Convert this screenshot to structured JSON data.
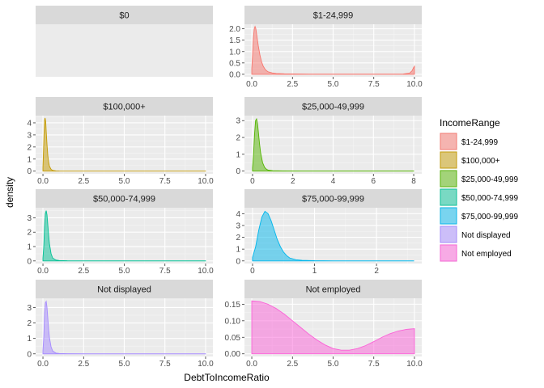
{
  "chart_data": {
    "type": "area",
    "subtype": "faceted-density",
    "xlabel": "DebtToIncomeRatio",
    "ylabel": "density",
    "legend": {
      "title": "IncomeRange",
      "position": "right",
      "entries": [
        {
          "label": "$1-24,999",
          "color": "#F8766D"
        },
        {
          "label": "$100,000+",
          "color": "#C49A00"
        },
        {
          "label": "$25,000-49,999",
          "color": "#53B400"
        },
        {
          "label": "$50,000-74,999",
          "color": "#00C094"
        },
        {
          "label": "$75,000-99,999",
          "color": "#00B6EB"
        },
        {
          "label": "Not displayed",
          "color": "#A58AFF"
        },
        {
          "label": "Not employed",
          "color": "#FB61D7"
        }
      ]
    },
    "grid": true,
    "panels": [
      {
        "title": "$0",
        "empty": true
      },
      {
        "title": "$1-24,999",
        "color": "#F8766D",
        "xlim": [
          -0.45,
          10.45
        ],
        "ylim": [
          -0.11,
          2.2
        ],
        "xticks": [
          0,
          2.5,
          5,
          7.5,
          10
        ],
        "xtick_labels": [
          "0.0",
          "2.5",
          "5.0",
          "7.5",
          "10.0"
        ],
        "yticks": [
          0,
          0.5,
          1,
          1.5,
          2
        ],
        "ytick_labels": [
          "0.0",
          "0.5",
          "1.0",
          "1.5",
          "2.0"
        ],
        "x": [
          0,
          0.05,
          0.1,
          0.15,
          0.2,
          0.25,
          0.3,
          0.4,
          0.5,
          0.6,
          0.7,
          0.8,
          0.9,
          1.0,
          1.25,
          1.5,
          2.0,
          3.0,
          5.0,
          7.0,
          8.5,
          9.3,
          9.7,
          9.85,
          9.95,
          10.0
        ],
        "y": [
          0.25,
          0.9,
          1.6,
          2.0,
          2.1,
          2.0,
          1.75,
          1.25,
          0.85,
          0.55,
          0.36,
          0.24,
          0.16,
          0.11,
          0.06,
          0.035,
          0.02,
          0.01,
          0.005,
          0.005,
          0.005,
          0.01,
          0.05,
          0.15,
          0.3,
          0.35
        ]
      },
      {
        "title": "$100,000+",
        "color": "#C49A00",
        "xlim": [
          -0.45,
          10.45
        ],
        "ylim": [
          -0.22,
          4.6
        ],
        "xticks": [
          0,
          2.5,
          5,
          7.5,
          10
        ],
        "xtick_labels": [
          "0.0",
          "2.5",
          "5.0",
          "7.5",
          "10.0"
        ],
        "yticks": [
          0,
          1,
          2,
          3,
          4
        ],
        "ytick_labels": [
          "0",
          "1",
          "2",
          "3",
          "4"
        ],
        "x": [
          0,
          0.03,
          0.07,
          0.1,
          0.13,
          0.17,
          0.2,
          0.25,
          0.3,
          0.35,
          0.4,
          0.5,
          0.6,
          0.8,
          1.0,
          1.5,
          3.0,
          6.0,
          10.0
        ],
        "y": [
          0.3,
          1.5,
          3.2,
          4.2,
          4.4,
          4.1,
          3.3,
          2.2,
          1.3,
          0.75,
          0.4,
          0.15,
          0.06,
          0.02,
          0.01,
          0.005,
          0.003,
          0.002,
          0.002
        ]
      },
      {
        "title": "$25,000-49,999",
        "color": "#53B400",
        "xlim": [
          -0.4,
          8.4
        ],
        "ylim": [
          -0.16,
          3.3
        ],
        "xticks": [
          0,
          2,
          4,
          6,
          8
        ],
        "xtick_labels": [
          "0",
          "2",
          "4",
          "6",
          "8"
        ],
        "yticks": [
          0,
          1,
          2,
          3
        ],
        "ytick_labels": [
          "0",
          "1",
          "2",
          "3"
        ],
        "x": [
          0,
          0.05,
          0.1,
          0.15,
          0.2,
          0.25,
          0.3,
          0.35,
          0.4,
          0.5,
          0.6,
          0.7,
          0.8,
          1.0,
          1.5,
          2.5,
          4.0,
          6.0,
          8.0
        ],
        "y": [
          0.2,
          1.0,
          2.2,
          3.0,
          3.1,
          2.8,
          2.2,
          1.6,
          1.1,
          0.5,
          0.22,
          0.1,
          0.05,
          0.02,
          0.008,
          0.004,
          0.003,
          0.002,
          0.002
        ]
      },
      {
        "title": "$50,000-74,999",
        "color": "#00C094",
        "xlim": [
          -0.45,
          10.45
        ],
        "ylim": [
          -0.18,
          3.7
        ],
        "xticks": [
          0,
          2.5,
          5,
          7.5,
          10
        ],
        "xtick_labels": [
          "0.0",
          "2.5",
          "5.0",
          "7.5",
          "10.0"
        ],
        "yticks": [
          0,
          1,
          2,
          3
        ],
        "ytick_labels": [
          "0",
          "1",
          "2",
          "3"
        ],
        "x": [
          0,
          0.05,
          0.1,
          0.15,
          0.2,
          0.25,
          0.3,
          0.35,
          0.4,
          0.5,
          0.6,
          0.8,
          1.0,
          1.5,
          3.0,
          6.0,
          10.0
        ],
        "y": [
          0.2,
          1.0,
          2.4,
          3.3,
          3.5,
          3.2,
          2.5,
          1.8,
          1.2,
          0.5,
          0.2,
          0.06,
          0.03,
          0.01,
          0.005,
          0.003,
          0.003
        ]
      },
      {
        "title": "$75,000-99,999",
        "color": "#00B6EB",
        "xlim": [
          -0.13,
          2.73
        ],
        "ylim": [
          -0.22,
          4.5
        ],
        "xticks": [
          0,
          1,
          2
        ],
        "xtick_labels": [
          "0",
          "1",
          "2"
        ],
        "yticks": [
          0,
          1,
          2,
          3,
          4
        ],
        "ytick_labels": [
          "0",
          "1",
          "2",
          "3",
          "4"
        ],
        "x": [
          0,
          0.05,
          0.1,
          0.15,
          0.2,
          0.25,
          0.3,
          0.35,
          0.4,
          0.45,
          0.5,
          0.55,
          0.6,
          0.7,
          0.8,
          1.0,
          1.3,
          1.7,
          2.2,
          2.6
        ],
        "y": [
          0.3,
          1.2,
          2.6,
          3.7,
          4.2,
          4.0,
          3.4,
          2.6,
          1.8,
          1.2,
          0.75,
          0.45,
          0.25,
          0.1,
          0.05,
          0.02,
          0.01,
          0.005,
          0.003,
          0.003
        ]
      },
      {
        "title": "Not displayed",
        "color": "#A58AFF",
        "xlim": [
          -0.45,
          10.45
        ],
        "ylim": [
          -0.17,
          3.6
        ],
        "xticks": [
          0,
          2.5,
          5,
          7.5,
          10
        ],
        "xtick_labels": [
          "0.0",
          "2.5",
          "5.0",
          "7.5",
          "10.0"
        ],
        "yticks": [
          0,
          1,
          2,
          3
        ],
        "ytick_labels": [
          "0",
          "1",
          "2",
          "3"
        ],
        "x": [
          0,
          0.05,
          0.1,
          0.15,
          0.2,
          0.25,
          0.3,
          0.35,
          0.4,
          0.5,
          0.6,
          0.8,
          1.0,
          1.5,
          3.0,
          6.0,
          10.0
        ],
        "y": [
          0.2,
          1.1,
          2.6,
          3.3,
          3.4,
          3.0,
          2.3,
          1.6,
          1.05,
          0.45,
          0.18,
          0.05,
          0.02,
          0.01,
          0.005,
          0.003,
          0.003
        ]
      },
      {
        "title": "Not employed",
        "color": "#FB61D7",
        "xlim": [
          -0.45,
          10.45
        ],
        "ylim": [
          -0.008,
          0.168
        ],
        "xticks": [
          0,
          2.5,
          5,
          7.5,
          10
        ],
        "xtick_labels": [
          "0.0",
          "2.5",
          "5.0",
          "7.5",
          "10.0"
        ],
        "yticks": [
          0,
          0.05,
          0.1,
          0.15
        ],
        "ytick_labels": [
          "0.00",
          "0.05",
          "0.10",
          "0.15"
        ],
        "x": [
          0,
          0.5,
          1.0,
          1.5,
          2.0,
          2.5,
          3.0,
          3.5,
          4.0,
          4.5,
          5.0,
          5.5,
          6.0,
          6.5,
          7.0,
          7.5,
          8.0,
          8.5,
          9.0,
          9.5,
          10.0
        ],
        "y": [
          0.16,
          0.158,
          0.15,
          0.137,
          0.12,
          0.1,
          0.08,
          0.06,
          0.042,
          0.027,
          0.016,
          0.011,
          0.011,
          0.016,
          0.025,
          0.037,
          0.05,
          0.061,
          0.069,
          0.074,
          0.076
        ]
      }
    ]
  }
}
